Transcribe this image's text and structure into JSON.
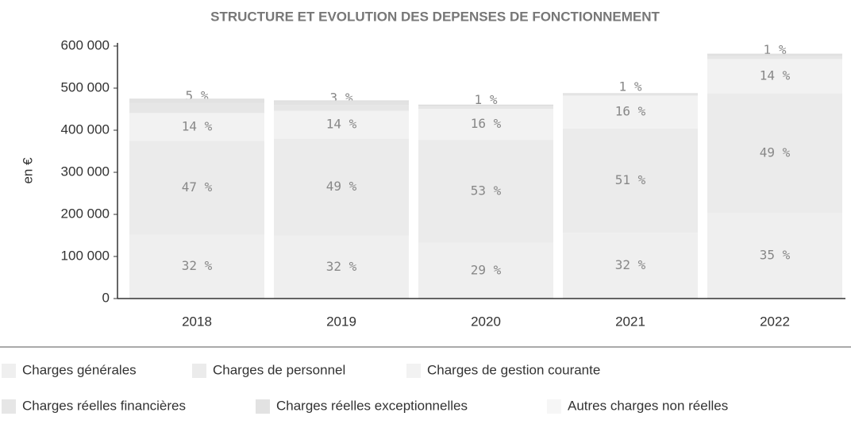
{
  "chart_data": {
    "type": "stacked_bar",
    "title": "STRUCTURE ET EVOLUTION DES DEPENSES DE FONCTIONNEMENT",
    "y_label": "en €",
    "categories": [
      "2018",
      "2019",
      "2020",
      "2021",
      "2022"
    ],
    "series": [
      {
        "name": "Charges générales",
        "color": "#efefef",
        "values": [
          152000,
          150000,
          133000,
          156000,
          203000
        ],
        "share_labels": [
          "32 %",
          "32 %",
          "29 %",
          "32 %",
          "35 %"
        ]
      },
      {
        "name": "Charges de personnel",
        "color": "#ebebeb",
        "values": [
          223000,
          230000,
          244000,
          248000,
          285000
        ],
        "share_labels": [
          "47 %",
          "49 %",
          "53 %",
          "51 %",
          "49 %"
        ]
      },
      {
        "name": "Charges de gestion courante",
        "color": "#f2f2f2",
        "values": [
          66000,
          66000,
          74000,
          78000,
          81000
        ],
        "share_labels": [
          "14 %",
          "14 %",
          "16 %",
          "16 %",
          "14 %"
        ]
      },
      {
        "name": "Charges réelles financières",
        "color": "#e6e6e6",
        "values": [
          24000,
          14000,
          5000,
          5000,
          6000
        ],
        "share_labels": [
          "5 %",
          "3 %",
          "1 %",
          "1 %",
          "1 %"
        ]
      },
      {
        "name": "Charges réelles exceptionnelles",
        "color": "#e2e2e2",
        "values": [
          9000,
          10000,
          4000,
          0,
          6000
        ]
      },
      {
        "name": "Autres charges non réelles",
        "color": "#f6f6f6",
        "values": [
          0,
          0,
          0,
          0,
          0
        ]
      }
    ],
    "ylim": [
      0,
      600000
    ],
    "yticks": [
      0,
      {
        "value": 100000,
        "label": "100 000"
      },
      {
        "value": 200000,
        "label": "200 000"
      },
      {
        "value": 300000,
        "label": "300 000"
      },
      {
        "value": 400000,
        "label": "400 000"
      },
      {
        "value": 500000,
        "label": "500 000"
      },
      {
        "value": 600000,
        "label": "600 000"
      }
    ]
  }
}
